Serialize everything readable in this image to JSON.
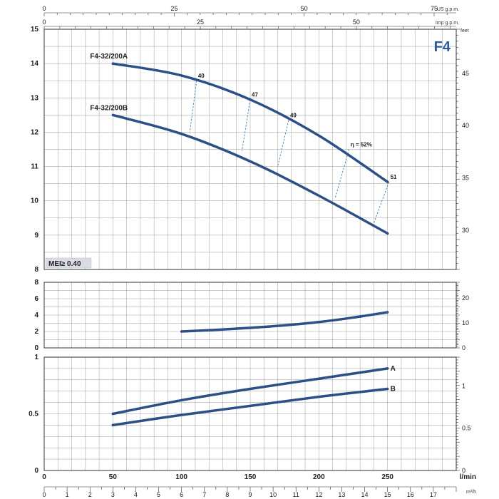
{
  "chart_data": [
    {
      "type": "line",
      "panel": "head",
      "title": "F4",
      "badge": "MEI≥ 0.40",
      "x_unit_top_1": "US g.p.m.",
      "x_unit_top_2": "Imp g.p.m.",
      "x_unit_bottom_1": "l/min",
      "x_unit_bottom_2": "m³/h",
      "y2_unit": "feet",
      "xlim": [
        0,
        300
      ],
      "ylim": [
        8,
        15
      ],
      "y_ticks": [
        8,
        9,
        10,
        11,
        12,
        13,
        14,
        15
      ],
      "y2_ticks": [
        30,
        35,
        40,
        45
      ],
      "top_ticks_usgpm": [
        0,
        25,
        50,
        75
      ],
      "top_ticks_impgpm": [
        0,
        25,
        50
      ],
      "series": [
        {
          "name": "F4-32/200A",
          "x": [
            50,
            100,
            150,
            200,
            250
          ],
          "y": [
            14.0,
            13.65,
            12.95,
            11.9,
            10.55
          ]
        },
        {
          "name": "F4-32/200B",
          "x": [
            50,
            100,
            150,
            200,
            250
          ],
          "y": [
            12.5,
            11.95,
            11.15,
            10.15,
            9.05
          ]
        }
      ],
      "efficiency": [
        {
          "label": "40",
          "x1": 111,
          "y1": 13.5,
          "x2": 106,
          "y2": 12.0
        },
        {
          "label": "47",
          "x1": 150,
          "y1": 12.95,
          "x2": 144,
          "y2": 11.45
        },
        {
          "label": "49",
          "x1": 178,
          "y1": 12.35,
          "x2": 170,
          "y2": 11.0
        },
        {
          "label": "η = 52%",
          "x1": 222,
          "y1": 11.5,
          "x2": 212,
          "y2": 10.1
        },
        {
          "label": "51",
          "x1": 251,
          "y1": 10.55,
          "x2": 240,
          "y2": 9.35
        }
      ]
    },
    {
      "type": "line",
      "panel": "npsh",
      "xlim": [
        0,
        300
      ],
      "ylim": [
        0,
        8
      ],
      "y_ticks": [
        0,
        2,
        4,
        6,
        8
      ],
      "y2_ticks": [
        0,
        10,
        20
      ],
      "series": [
        {
          "name": "",
          "x": [
            100,
            125,
            150,
            175,
            200,
            225,
            250
          ],
          "y": [
            2.0,
            2.2,
            2.45,
            2.75,
            3.15,
            3.7,
            4.35
          ]
        }
      ]
    },
    {
      "type": "line",
      "panel": "power",
      "xlim": [
        0,
        300
      ],
      "ylim": [
        0,
        1
      ],
      "y_ticks": [
        0,
        0.5,
        1
      ],
      "y_tick_labels": [
        "0",
        "0.5",
        "1"
      ],
      "y2_ticks": [
        0,
        0.5,
        1
      ],
      "y2_tick_labels": [
        "0",
        "0.5",
        "1"
      ],
      "x_ticks": [
        0,
        50,
        100,
        150,
        200,
        250
      ],
      "m3h_ticks": [
        0,
        1,
        2,
        3,
        4,
        5,
        6,
        7,
        8,
        9,
        10,
        11,
        12,
        13,
        14,
        15,
        16,
        17
      ],
      "series": [
        {
          "name": "A",
          "x": [
            50,
            100,
            150,
            200,
            250
          ],
          "y": [
            0.5,
            0.62,
            0.72,
            0.81,
            0.9
          ]
        },
        {
          "name": "B",
          "x": [
            50,
            100,
            150,
            200,
            250
          ],
          "y": [
            0.4,
            0.49,
            0.57,
            0.65,
            0.72
          ]
        }
      ]
    }
  ]
}
